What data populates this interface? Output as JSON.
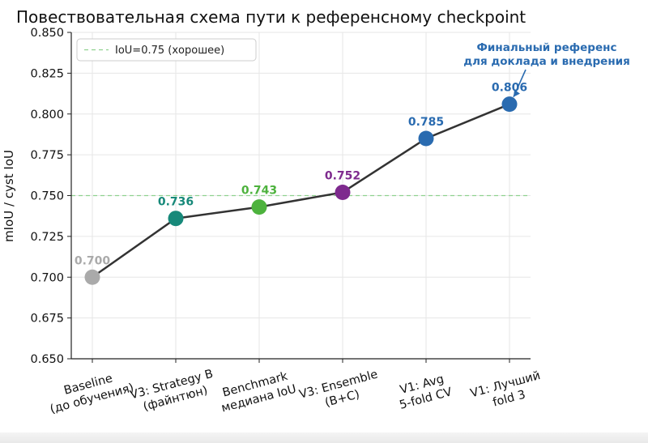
{
  "chart_data": {
    "type": "line",
    "title": "Повествовательная схема пути к референсному checkpoint",
    "xlabel": "",
    "ylabel": "mIoU / cyst IoU",
    "ylim": [
      0.65,
      0.85
    ],
    "yticks": [
      "0.650",
      "0.675",
      "0.700",
      "0.725",
      "0.750",
      "0.775",
      "0.800",
      "0.825",
      "0.850"
    ],
    "grid": true,
    "legend_position": "top-left",
    "reference_line": {
      "y": 0.75,
      "label": "IoU=0.75 (хорошее)",
      "color": "#8fd18f"
    },
    "categories": [
      [
        "Baseline",
        "(до обучения)"
      ],
      [
        "V3: Strategy B",
        "(файнтюн)"
      ],
      [
        "Benchmark",
        "медиана IoU"
      ],
      [
        "V3: Ensemble",
        "(B+C)"
      ],
      [
        "V1: Avg",
        "5-fold CV"
      ],
      [
        "V1: Лучший",
        "fold 3"
      ]
    ],
    "values": [
      0.7,
      0.736,
      0.743,
      0.752,
      0.785,
      0.806
    ],
    "value_labels": [
      "0.700",
      "0.736",
      "0.743",
      "0.752",
      "0.785",
      "0.806"
    ],
    "point_colors": [
      "#aaaaaa",
      "#17897a",
      "#4db23d",
      "#7e2a8e",
      "#2a6bb0",
      "#2a6bb0"
    ],
    "line_color": "#333333",
    "annotation": {
      "lines": [
        "Финальный референс",
        "для доклада и внедрения"
      ],
      "target_index": 5,
      "color": "#2a6bb0"
    }
  }
}
